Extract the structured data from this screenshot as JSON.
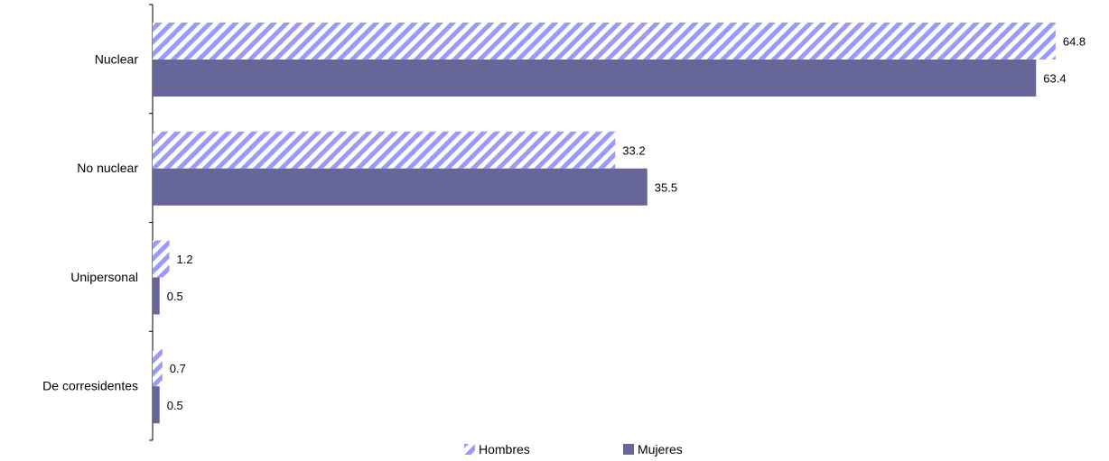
{
  "chart_data": {
    "type": "bar",
    "orientation": "horizontal",
    "categories": [
      "Nuclear",
      "No nuclear",
      "Unipersonal",
      "De corresidentes"
    ],
    "series": [
      {
        "name": "Hombres",
        "values": [
          64.8,
          33.2,
          1.2,
          0.7
        ],
        "color": "#9999ff",
        "pattern": "diagonal-stripes"
      },
      {
        "name": "Mujeres",
        "values": [
          63.4,
          35.5,
          0.5,
          0.5
        ],
        "color": "#666699",
        "pattern": "solid"
      }
    ],
    "value_labels": [
      [
        "64.8",
        "33.2",
        "1.2",
        "0.7"
      ],
      [
        "63.4",
        "35.5",
        "0.5",
        "0.5"
      ]
    ],
    "xlim": [
      0,
      65
    ],
    "grid": false,
    "legend_position": "bottom"
  }
}
